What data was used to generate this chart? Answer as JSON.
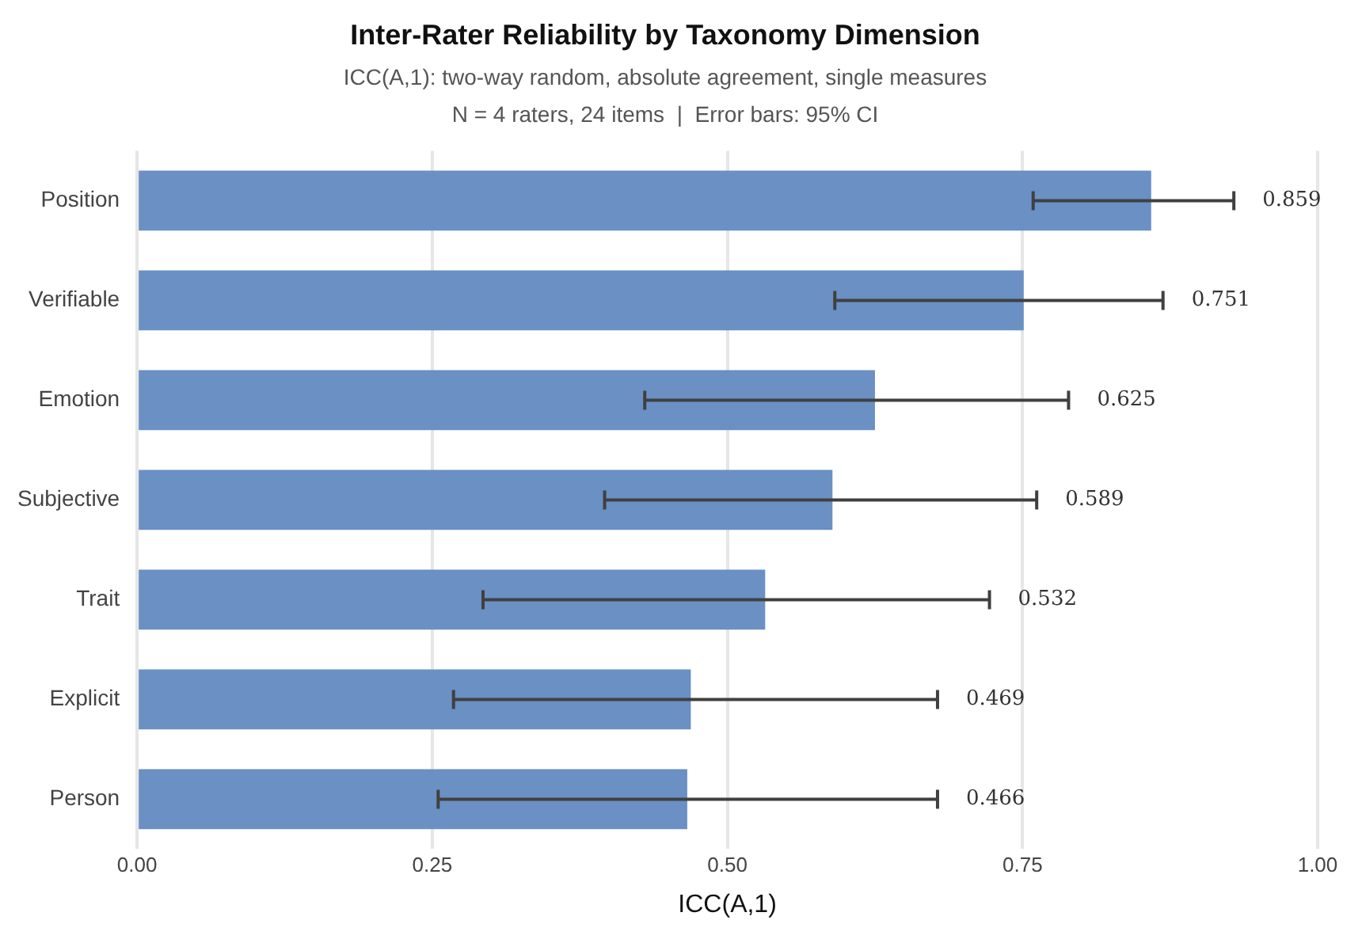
{
  "chart_data": {
    "type": "bar",
    "orientation": "horizontal",
    "title": "Inter-Rater Reliability by Taxonomy Dimension",
    "subtitle": "ICC(A,1): two-way random, absolute agreement, single measures\nN = 4 raters, 24 items  |  Error bars: 95% CI",
    "xlabel": "ICC(A,1)",
    "categories": [
      "Position",
      "Verifiable",
      "Emotion",
      "Subjective",
      "Trait",
      "Explicit",
      "Person"
    ],
    "values": [
      0.859,
      0.751,
      0.625,
      0.589,
      0.532,
      0.469,
      0.466
    ],
    "errors": [
      [
        0.759,
        0.929
      ],
      [
        0.591,
        0.869
      ],
      [
        0.43,
        0.789
      ],
      [
        0.396,
        0.762
      ],
      [
        0.293,
        0.722
      ],
      [
        0.268,
        0.678
      ],
      [
        0.255,
        0.678
      ]
    ],
    "color": "#6a90c4",
    "xlim": [
      0,
      1
    ],
    "xticks": [
      {
        "value": 0,
        "label": "0.00"
      },
      {
        "value": 0.25,
        "label": "0.25"
      },
      {
        "value": 0.5,
        "label": "0.50"
      },
      {
        "value": 0.75,
        "label": "0.75"
      },
      {
        "value": 1,
        "label": "1.00"
      }
    ],
    "annotations": [
      "0.859",
      "0.751",
      "0.625",
      "0.589",
      "0.532",
      "0.469",
      "0.466"
    ],
    "grid": "x",
    "legend": false
  }
}
